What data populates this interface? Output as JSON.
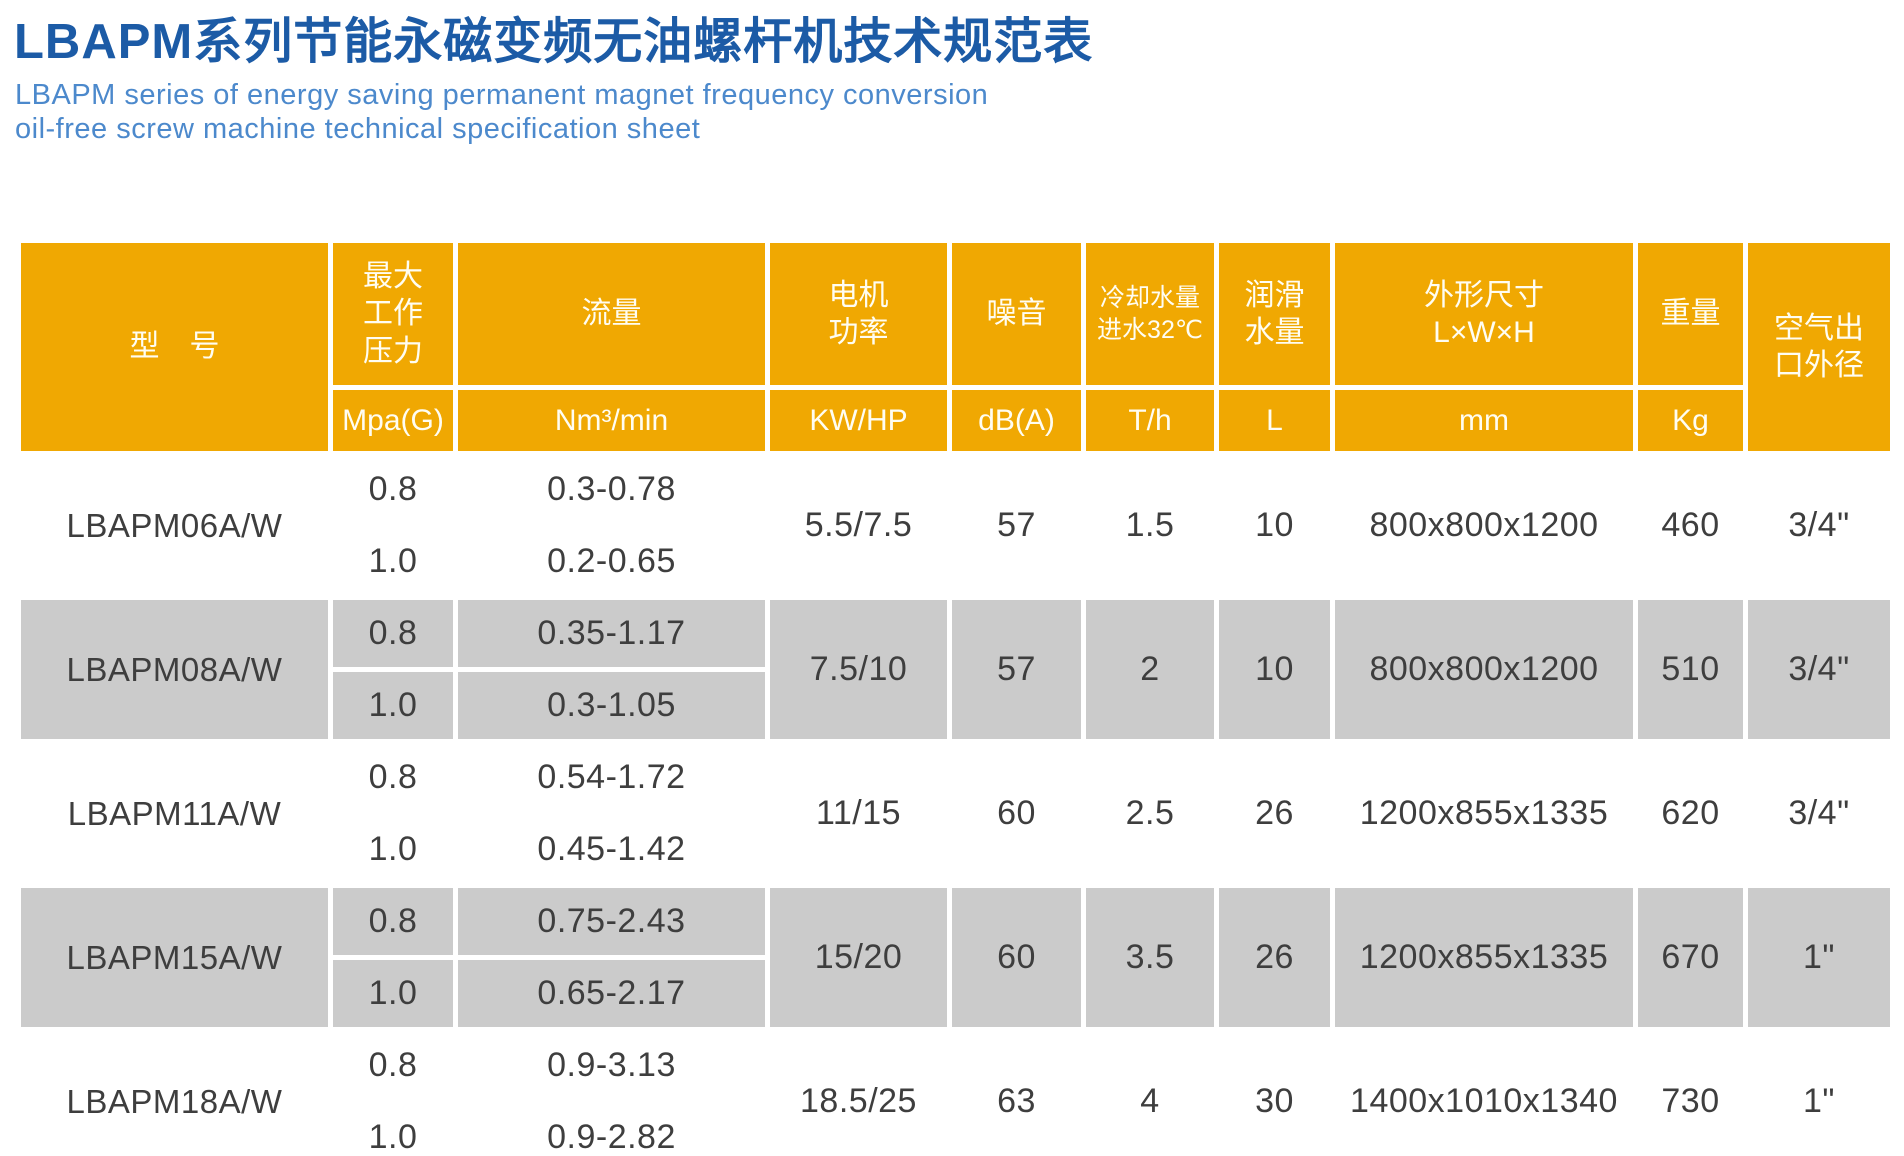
{
  "title": "LBAPM系列节能永磁变频无油螺杆机技术规范表",
  "subtitle_line1": "LBAPM series of energy saving permanent magnet frequency conversion",
  "subtitle_line2": "oil-free screw machine technical specification sheet",
  "colors": {
    "title_blue": "#1c5ba6",
    "subtitle_blue": "#4c89cc",
    "header_orange": "#f0a802",
    "row_gray": "#cbcbcb",
    "data_text": "#3e3e3e",
    "header_text": "#fffdf2"
  },
  "table": {
    "headers": {
      "model": "型　号",
      "pressure": "最大\n工作\n压力",
      "flow": "流量",
      "power": "电机\n功率",
      "noise": "噪音",
      "cooling": "冷却水量\n进水32℃",
      "lube": "润滑\n水量",
      "dims": "外形尺寸\nL×W×H",
      "weight": "重量",
      "outlet": "空气出\n口外径"
    },
    "units": {
      "pressure": "Mpa(G)",
      "flow": "Nm³/min",
      "power": "KW/HP",
      "noise": "dB(A)",
      "cooling": "T/h",
      "lube": "L",
      "dims": "mm",
      "weight": "Kg"
    },
    "rows": [
      {
        "model": "LBAPM06A/W",
        "sub": [
          {
            "pressure": "0.8",
            "flow": "0.3-0.78"
          },
          {
            "pressure": "1.0",
            "flow": "0.2-0.65"
          }
        ],
        "power": "5.5/7.5",
        "noise": "57",
        "cooling": "1.5",
        "lube": "10",
        "dims": "800x800x1200",
        "weight": "460",
        "outlet": "3/4\""
      },
      {
        "model": "LBAPM08A/W",
        "sub": [
          {
            "pressure": "0.8",
            "flow": "0.35-1.17"
          },
          {
            "pressure": "1.0",
            "flow": "0.3-1.05"
          }
        ],
        "power": "7.5/10",
        "noise": "57",
        "cooling": "2",
        "lube": "10",
        "dims": "800x800x1200",
        "weight": "510",
        "outlet": "3/4\""
      },
      {
        "model": "LBAPM11A/W",
        "sub": [
          {
            "pressure": "0.8",
            "flow": "0.54-1.72"
          },
          {
            "pressure": "1.0",
            "flow": "0.45-1.42"
          }
        ],
        "power": "11/15",
        "noise": "60",
        "cooling": "2.5",
        "lube": "26",
        "dims": "1200x855x1335",
        "weight": "620",
        "outlet": "3/4\""
      },
      {
        "model": "LBAPM15A/W",
        "sub": [
          {
            "pressure": "0.8",
            "flow": "0.75-2.43"
          },
          {
            "pressure": "1.0",
            "flow": "0.65-2.17"
          }
        ],
        "power": "15/20",
        "noise": "60",
        "cooling": "3.5",
        "lube": "26",
        "dims": "1200x855x1335",
        "weight": "670",
        "outlet": "1\""
      },
      {
        "model": "LBAPM18A/W",
        "sub": [
          {
            "pressure": "0.8",
            "flow": "0.9-3.13"
          },
          {
            "pressure": "1.0",
            "flow": "0.9-2.82"
          }
        ],
        "power": "18.5/25",
        "noise": "63",
        "cooling": "4",
        "lube": "30",
        "dims": "1400x1010x1340",
        "weight": "730",
        "outlet": "1\""
      }
    ]
  }
}
